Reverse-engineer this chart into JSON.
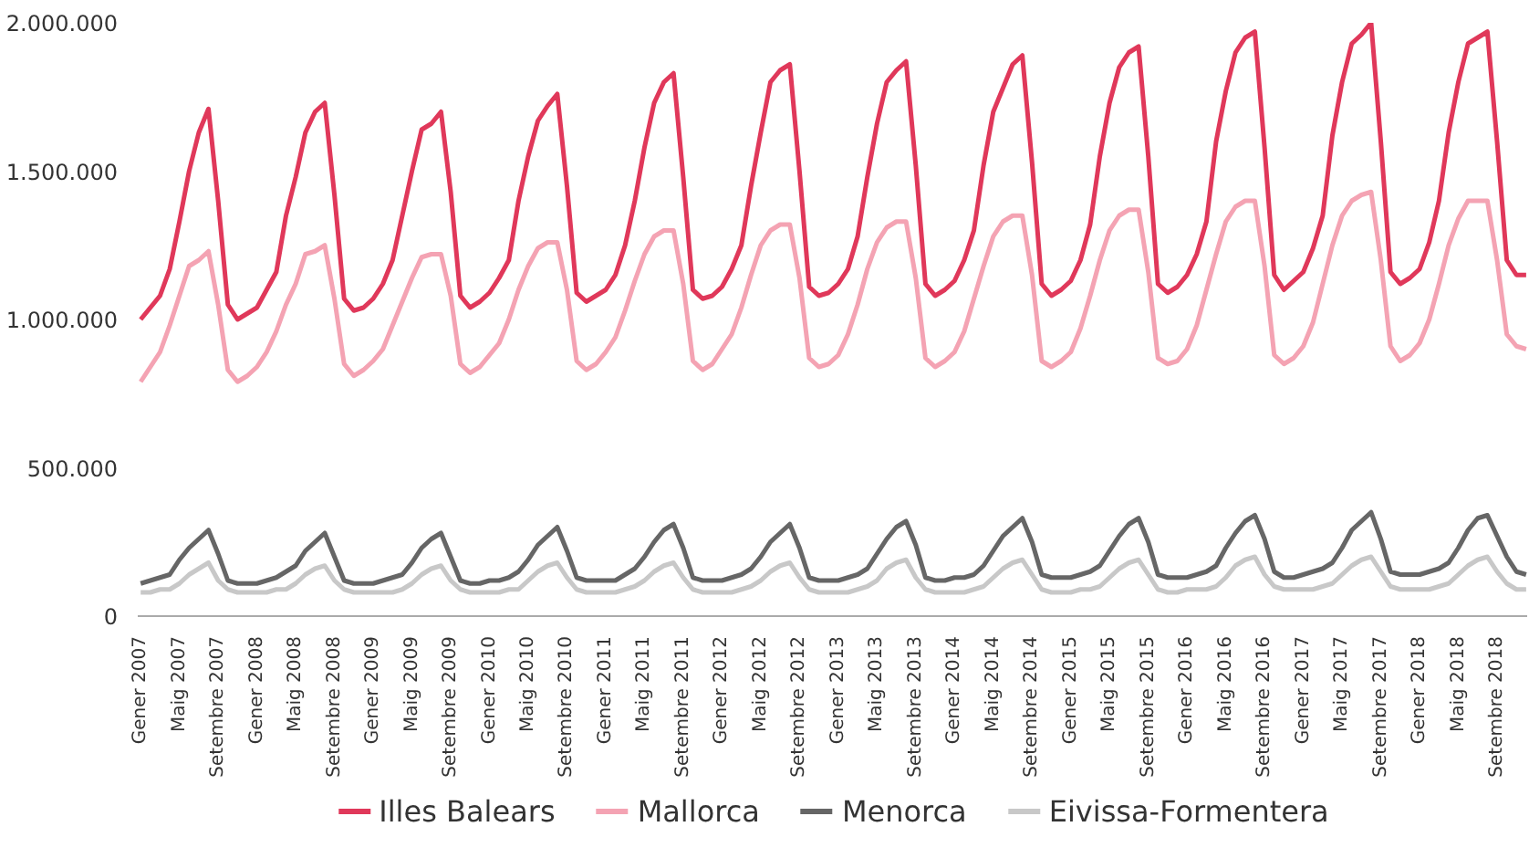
{
  "chart_data": {
    "type": "line",
    "categories": [
      "Gener 2007",
      null,
      null,
      null,
      "Maig 2007",
      null,
      null,
      null,
      "Setembre 2007",
      null,
      null,
      null,
      "Gener 2008",
      null,
      null,
      null,
      "Maig 2008",
      null,
      null,
      null,
      "Setembre 2008",
      null,
      null,
      null,
      "Gener 2009",
      null,
      null,
      null,
      "Maig 2009",
      null,
      null,
      null,
      "Setembre 2009",
      null,
      null,
      null,
      "Gener 2010",
      null,
      null,
      null,
      "Maig 2010",
      null,
      null,
      null,
      "Setembre 2010",
      null,
      null,
      null,
      "Gener 2011",
      null,
      null,
      null,
      "Maig 2011",
      null,
      null,
      null,
      "Setembre 2011",
      null,
      null,
      null,
      "Gener 2012",
      null,
      null,
      null,
      "Maig 2012",
      null,
      null,
      null,
      "Setembre 2012",
      null,
      null,
      null,
      "Gener 2013",
      null,
      null,
      null,
      "Maig 2013",
      null,
      null,
      null,
      "Setembre 2013",
      null,
      null,
      null,
      "Gener 2014",
      null,
      null,
      null,
      "Maig 2014",
      null,
      null,
      null,
      "Setembre 2014",
      null,
      null,
      null,
      "Gener 2015",
      null,
      null,
      null,
      "Maig 2015",
      null,
      null,
      null,
      "Setembre 2015",
      null,
      null,
      null,
      "Gener 2016",
      null,
      null,
      null,
      "Maig 2016",
      null,
      null,
      null,
      "Setembre 2016",
      null,
      null,
      null,
      "Gener 2017",
      null,
      null,
      null,
      "Maig 2017",
      null,
      null,
      null,
      "Setembre 2017",
      null,
      null,
      null,
      "Gener 2018",
      null,
      null,
      null,
      "Maig 2018",
      null,
      null,
      null,
      "Setembre 2018",
      null,
      null,
      null
    ],
    "series": [
      {
        "name": "Illes Balears",
        "color": "#e0385a",
        "values": [
          1000000.0,
          1040000.0,
          1080000.0,
          1170000.0,
          1330000.0,
          1500000.0,
          1630000.0,
          1710000.0,
          1400000.0,
          1050000.0,
          1000000.0,
          1020000.0,
          1040000.0,
          1100000.0,
          1160000.0,
          1350000.0,
          1480000.0,
          1630000.0,
          1700000.0,
          1730000.0,
          1420000.0,
          1070000.0,
          1030000.0,
          1040000.0,
          1070000.0,
          1120000.0,
          1200000.0,
          1350000.0,
          1500000.0,
          1640000.0,
          1660000.0,
          1700000.0,
          1430000.0,
          1080000.0,
          1040000.0,
          1060000.0,
          1090000.0,
          1140000.0,
          1200000.0,
          1400000.0,
          1550000.0,
          1670000.0,
          1720000.0,
          1760000.0,
          1450000.0,
          1090000.0,
          1060000.0,
          1080000.0,
          1100000.0,
          1150000.0,
          1250000.0,
          1400000.0,
          1580000.0,
          1730000.0,
          1800000.0,
          1830000.0,
          1480000.0,
          1100000.0,
          1070000.0,
          1080000.0,
          1110000.0,
          1170000.0,
          1250000.0,
          1450000.0,
          1630000.0,
          1800000.0,
          1840000.0,
          1860000.0,
          1500000.0,
          1110000.0,
          1080000.0,
          1090000.0,
          1120000.0,
          1170000.0,
          1280000.0,
          1480000.0,
          1660000.0,
          1800000.0,
          1840000.0,
          1870000.0,
          1520000.0,
          1120000.0,
          1080000.0,
          1100000.0,
          1130000.0,
          1200000.0,
          1300000.0,
          1520000.0,
          1700000.0,
          1780000.0,
          1860000.0,
          1890000.0,
          1530000.0,
          1120000.0,
          1080000.0,
          1100000.0,
          1130000.0,
          1200000.0,
          1320000.0,
          1550000.0,
          1730000.0,
          1850000.0,
          1900000.0,
          1920000.0,
          1550000.0,
          1120000.0,
          1090000.0,
          1110000.0,
          1150000.0,
          1220000.0,
          1330000.0,
          1600000.0,
          1770000.0,
          1900000.0,
          1950000.0,
          1970000.0,
          1580000.0,
          1150000.0,
          1100000.0,
          1130000.0,
          1160000.0,
          1240000.0,
          1350000.0,
          1620000.0,
          1800000.0,
          1930000.0,
          1960000.0,
          2000000.0,
          1600000.0,
          1160000.0,
          1120000.0,
          1140000.0,
          1170000.0,
          1260000.0,
          1400000.0,
          1630000.0,
          1800000.0,
          1930000.0,
          1950000.0,
          1970000.0,
          1600000.0,
          1200000.0,
          1150000.0,
          1150000.0
        ]
      },
      {
        "name": "Mallorca",
        "color": "#f4a3b3",
        "values": [
          790000.0,
          840000.0,
          890000.0,
          980000.0,
          1080000.0,
          1180000.0,
          1200000.0,
          1230000.0,
          1050000.0,
          830000.0,
          790000.0,
          810000.0,
          840000.0,
          890000.0,
          960000.0,
          1050000.0,
          1120000.0,
          1220000.0,
          1230000.0,
          1250000.0,
          1070000.0,
          850000.0,
          810000.0,
          830000.0,
          860000.0,
          900000.0,
          980000.0,
          1060000.0,
          1140000.0,
          1210000.0,
          1220000.0,
          1220000.0,
          1080000.0,
          850000.0,
          820000.0,
          840000.0,
          880000.0,
          920000.0,
          1000000.0,
          1100000.0,
          1180000.0,
          1240000.0,
          1260000.0,
          1260000.0,
          1100000.0,
          860000.0,
          830000.0,
          850000.0,
          890000.0,
          940000.0,
          1030000.0,
          1130000.0,
          1220000.0,
          1280000.0,
          1300000.0,
          1300000.0,
          1120000.0,
          860000.0,
          830000.0,
          850000.0,
          900000.0,
          950000.0,
          1040000.0,
          1150000.0,
          1250000.0,
          1300000.0,
          1320000.0,
          1320000.0,
          1140000.0,
          870000.0,
          840000.0,
          850000.0,
          880000.0,
          950000.0,
          1050000.0,
          1170000.0,
          1260000.0,
          1310000.0,
          1330000.0,
          1330000.0,
          1140000.0,
          870000.0,
          840000.0,
          860000.0,
          890000.0,
          960000.0,
          1070000.0,
          1180000.0,
          1280000.0,
          1330000.0,
          1350000.0,
          1350000.0,
          1150000.0,
          860000.0,
          840000.0,
          860000.0,
          890000.0,
          970000.0,
          1080000.0,
          1200000.0,
          1300000.0,
          1350000.0,
          1370000.0,
          1370000.0,
          1160000.0,
          870000.0,
          850000.0,
          860000.0,
          900000.0,
          980000.0,
          1100000.0,
          1220000.0,
          1330000.0,
          1380000.0,
          1400000.0,
          1400000.0,
          1180000.0,
          880000.0,
          850000.0,
          870000.0,
          910000.0,
          990000.0,
          1120000.0,
          1250000.0,
          1350000.0,
          1400000.0,
          1420000.0,
          1430000.0,
          1200000.0,
          910000.0,
          860000.0,
          880000.0,
          920000.0,
          1000000.0,
          1120000.0,
          1250000.0,
          1340000.0,
          1400000.0,
          1400000.0,
          1400000.0,
          1200000.0,
          950000.0,
          910000.0,
          900000.0
        ]
      },
      {
        "name": "Menorca",
        "color": "#666666",
        "values": [
          110000,
          120000,
          130000,
          140000,
          190000,
          230000,
          260000,
          290000,
          210000,
          120000,
          110000,
          110000,
          110000,
          120000,
          130000,
          150000,
          170000,
          220000,
          250000,
          280000,
          200000,
          120000,
          110000,
          110000,
          110000,
          120000,
          130000,
          140000,
          180000,
          230000,
          260000,
          280000,
          200000,
          120000,
          110000,
          110000,
          120000,
          120000,
          130000,
          150000,
          190000,
          240000,
          270000,
          300000,
          220000,
          130000,
          120000,
          120000,
          120000,
          120000,
          140000,
          160000,
          200000,
          250000,
          290000,
          310000,
          230000,
          130000,
          120000,
          120000,
          120000,
          130000,
          140000,
          160000,
          200000,
          250000,
          280000,
          310000,
          230000,
          130000,
          120000,
          120000,
          120000,
          130000,
          140000,
          160000,
          210000,
          260000,
          300000,
          320000,
          240000,
          130000,
          120000,
          120000,
          130000,
          130000,
          140000,
          170000,
          220000,
          270000,
          300000,
          330000,
          250000,
          140000,
          130000,
          130000,
          130000,
          140000,
          150000,
          170000,
          220000,
          270000,
          310000,
          330000,
          250000,
          140000,
          130000,
          130000,
          130000,
          140000,
          150000,
          170000,
          230000,
          280000,
          320000,
          340000,
          260000,
          150000,
          130000,
          130000,
          140000,
          150000,
          160000,
          180000,
          230000,
          290000,
          320000,
          350000,
          260000,
          150000,
          140000,
          140000,
          140000,
          150000,
          160000,
          180000,
          230000,
          290000,
          330000,
          340000,
          270000,
          200000,
          150000,
          140000
        ]
      },
      {
        "name": "Eivissa-Formentera",
        "color": "#c8c8c8",
        "values": [
          80000,
          80000,
          90000,
          90000,
          110000,
          140000,
          160000,
          180000,
          120000,
          90000,
          80000,
          80000,
          80000,
          80000,
          90000,
          90000,
          110000,
          140000,
          160000,
          170000,
          120000,
          90000,
          80000,
          80000,
          80000,
          80000,
          80000,
          90000,
          110000,
          140000,
          160000,
          170000,
          120000,
          90000,
          80000,
          80000,
          80000,
          80000,
          90000,
          90000,
          120000,
          150000,
          170000,
          180000,
          130000,
          90000,
          80000,
          80000,
          80000,
          80000,
          90000,
          100000,
          120000,
          150000,
          170000,
          180000,
          130000,
          90000,
          80000,
          80000,
          80000,
          80000,
          90000,
          100000,
          120000,
          150000,
          170000,
          180000,
          130000,
          90000,
          80000,
          80000,
          80000,
          80000,
          90000,
          100000,
          120000,
          160000,
          180000,
          190000,
          130000,
          90000,
          80000,
          80000,
          80000,
          80000,
          90000,
          100000,
          130000,
          160000,
          180000,
          190000,
          140000,
          90000,
          80000,
          80000,
          80000,
          90000,
          90000,
          100000,
          130000,
          160000,
          180000,
          190000,
          140000,
          90000,
          80000,
          80000,
          90000,
          90000,
          90000,
          100000,
          130000,
          170000,
          190000,
          200000,
          140000,
          100000,
          90000,
          90000,
          90000,
          90000,
          100000,
          110000,
          140000,
          170000,
          190000,
          200000,
          150000,
          100000,
          90000,
          90000,
          90000,
          90000,
          100000,
          110000,
          140000,
          170000,
          190000,
          200000,
          150000,
          110000,
          90000,
          90000
        ]
      }
    ],
    "ylim": [
      0,
      2000000
    ],
    "yticks": [
      0,
      {
        "value": 500000,
        "label": "500.000"
      },
      {
        "value": 1000000,
        "label": "1.000.000"
      },
      {
        "value": 1500000,
        "label": "1.500.000"
      },
      {
        "value": 2000000,
        "label": "2.000.000"
      }
    ],
    "legend": "bottom",
    "line_style": "solid"
  }
}
